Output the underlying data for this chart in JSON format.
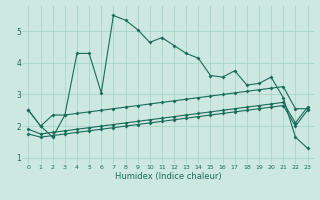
{
  "title": "",
  "xlabel": "Humidex (Indice chaleur)",
  "bg_color": "#cce8e0",
  "grid_color": "#aad4ca",
  "line_color": "#1a6b5a",
  "xlim": [
    -0.5,
    23.5
  ],
  "ylim": [
    0.8,
    5.8
  ],
  "yticks": [
    1,
    2,
    3,
    4,
    5
  ],
  "xticks": [
    0,
    1,
    2,
    3,
    4,
    5,
    6,
    7,
    8,
    9,
    10,
    11,
    12,
    13,
    14,
    15,
    16,
    17,
    18,
    19,
    20,
    21,
    22,
    23
  ],
  "curve1_y": [
    2.5,
    2.0,
    1.65,
    2.35,
    4.3,
    4.3,
    3.05,
    5.5,
    5.35,
    5.05,
    4.65,
    4.8,
    4.55,
    4.3,
    4.15,
    3.6,
    3.55,
    3.75,
    3.3,
    3.35,
    3.55,
    2.9,
    1.65,
    1.3
  ],
  "curve2_y": [
    2.5,
    2.0,
    2.35,
    2.35,
    2.4,
    2.45,
    2.5,
    2.55,
    2.6,
    2.65,
    2.7,
    2.75,
    2.8,
    2.85,
    2.9,
    2.95,
    3.0,
    3.05,
    3.1,
    3.15,
    3.2,
    3.25,
    2.55,
    2.55
  ],
  "curve3_y": [
    1.9,
    1.75,
    1.8,
    1.85,
    1.9,
    1.95,
    2.0,
    2.05,
    2.1,
    2.15,
    2.2,
    2.25,
    2.3,
    2.35,
    2.4,
    2.45,
    2.5,
    2.55,
    2.6,
    2.65,
    2.7,
    2.75,
    2.1,
    2.6
  ],
  "curve4_y": [
    1.75,
    1.65,
    1.7,
    1.75,
    1.8,
    1.85,
    1.9,
    1.95,
    2.0,
    2.05,
    2.1,
    2.15,
    2.2,
    2.25,
    2.3,
    2.35,
    2.4,
    2.45,
    2.5,
    2.55,
    2.6,
    2.65,
    2.0,
    2.5
  ]
}
